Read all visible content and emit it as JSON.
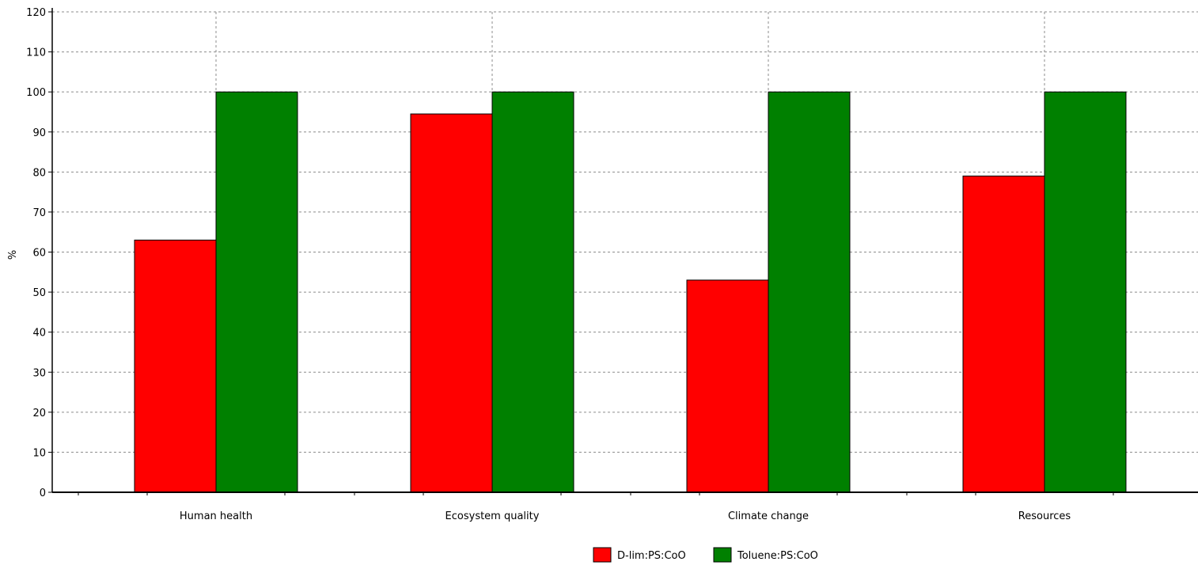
{
  "chart_data": {
    "type": "bar",
    "title": "",
    "xlabel": "",
    "ylabel": "%",
    "ylim": [
      0,
      120
    ],
    "yticks": [
      0,
      10,
      20,
      30,
      40,
      50,
      60,
      70,
      80,
      90,
      100,
      110,
      120
    ],
    "grid": true,
    "legend_position": "bottom",
    "categories": [
      "Human health",
      "Ecosystem quality",
      "Climate change",
      "Resources"
    ],
    "series": [
      {
        "name": "D-lim:PS:CoO",
        "color": "#ff0000",
        "values": [
          63,
          94.5,
          53,
          79
        ]
      },
      {
        "name": "Toluene:PS:CoO",
        "color": "#008000",
        "values": [
          100,
          100,
          100,
          100
        ]
      }
    ]
  }
}
